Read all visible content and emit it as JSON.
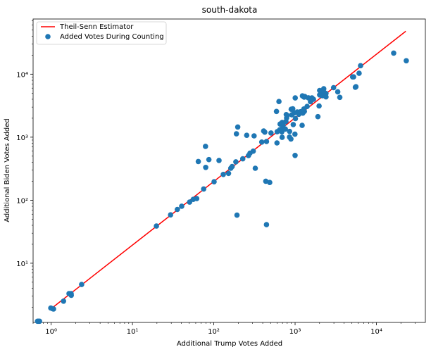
{
  "chart_data": {
    "type": "scatter",
    "title": "south-dakota",
    "xlabel": "Additional Trump Votes Added",
    "ylabel": "Additional Biden Votes Added",
    "xscale": "log",
    "yscale": "log",
    "xlim": [
      0.6,
      40000
    ],
    "ylim": [
      1.15,
      75000
    ],
    "x_ticks": [
      {
        "value": 1,
        "label": "10⁰"
      },
      {
        "value": 10,
        "label": "10¹"
      },
      {
        "value": 100,
        "label": "10²"
      },
      {
        "value": 1000,
        "label": "10³"
      },
      {
        "value": 10000,
        "label": "10⁴"
      }
    ],
    "y_ticks": [
      {
        "value": 10,
        "label": "10¹"
      },
      {
        "value": 100,
        "label": "10²"
      },
      {
        "value": 1000,
        "label": "10³"
      },
      {
        "value": 10000,
        "label": "10⁴"
      }
    ],
    "grid": false,
    "legend_position": "top-left",
    "fit_line": {
      "name": "Theil-Senn Estimator",
      "color": "#ff0000",
      "x": [
        1,
        23000
      ],
      "y": [
        1.9,
        48000
      ]
    },
    "series": [
      {
        "name": "Added Votes During Counting",
        "color": "#1f77b4",
        "x": [
          0.7,
          0.72,
          0.68,
          0.99,
          1.04,
          1.07,
          1.42,
          1.66,
          1.76,
          1.77,
          2.37,
          19.7,
          29.4,
          35.6,
          40.3,
          50.4,
          55.9,
          61.7,
          75.1,
          101,
          131,
          152,
          162,
          168,
          187,
          227,
          267,
          279,
          306,
          64.6,
          79.1,
          87,
          79.6,
          116,
          197,
          190,
          254,
          313,
          324,
          389,
          436,
          424,
          411,
          488,
          599,
          602,
          646,
          692,
          695,
          694,
          779,
          854,
          888,
          895,
          950,
          973,
          1063,
          1112,
          1169,
          1230,
          1294,
          1316,
          1453,
          1546,
          1611,
          1909,
          2005,
          2087,
          2153,
          2250,
          2399,
          2400,
          2977,
          3346,
          5100,
          5244,
          5595,
          6128,
          6391,
          16300,
          23300,
          193,
          445,
          445,
          505,
          591,
          633,
          654,
          681,
          687,
          690,
          712,
          757,
          771,
          787,
          798,
          856,
          912,
          936,
          995,
          1003,
          1210,
          1245,
          1302,
          1405,
          1541,
          1604,
          1681,
          2004,
          2173,
          2285,
          3548,
          5510,
          1000,
          1974,
          1010,
          1282,
          1220
        ],
        "y": [
          1.2,
          1.2,
          1.2,
          1.95,
          1.9,
          1.88,
          2.5,
          3.3,
          3.3,
          3.1,
          4.6,
          38.9,
          58.5,
          71.3,
          80.4,
          93.2,
          103,
          106,
          151,
          196,
          256,
          266,
          321,
          342,
          406,
          453,
          511,
          559,
          601,
          411,
          716,
          441,
          331,
          427,
          1452,
          1130,
          1070,
          1048,
          321,
          837,
          200,
          1201,
          1254,
          191,
          812,
          1222,
          1308,
          995,
          1640,
          1714,
          2283,
          1004,
          938,
          2772,
          1587,
          2425,
          2512,
          2310,
          2538,
          4524,
          4328,
          4422,
          4214,
          3652,
          4200,
          2117,
          5516,
          4605,
          4828,
          5862,
          4937,
          4364,
          6116,
          5251,
          9046,
          9054,
          6318,
          10315,
          13641,
          21624,
          16325,
          58,
          41,
          855,
          1165,
          2558,
          3682,
          1618,
          1345,
          1214,
          1622,
          1555,
          1347,
          1774,
          2020,
          2206,
          1235,
          2263,
          2821,
          1115,
          4193,
          2520,
          2406,
          2567,
          3071,
          4006,
          3919,
          3992,
          4690,
          4558,
          5110,
          4279,
          6201,
          513,
          3127,
          1972,
          2801,
          1540
        ]
      }
    ]
  }
}
